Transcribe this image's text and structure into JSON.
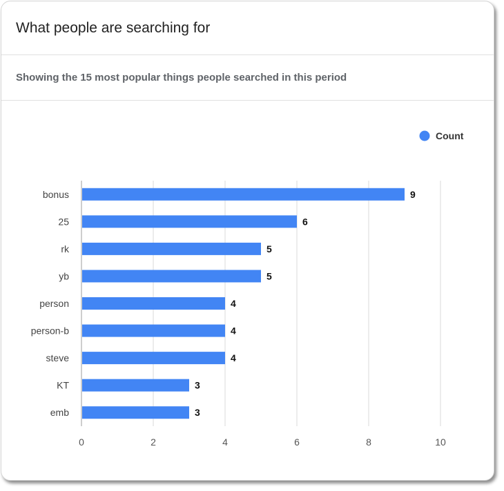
{
  "header": {
    "title": "What people are searching for",
    "subtitle": "Showing the 15 most popular things people searched in this period"
  },
  "colors": {
    "bar": "#4285f4",
    "grid": "#e6e6e6",
    "axis": "#bdbdbd"
  },
  "chart_data": {
    "type": "bar",
    "orientation": "horizontal",
    "categories": [
      "bonus",
      "25",
      "rk",
      "yb",
      "person",
      "person-b",
      "steve",
      "KT",
      "emb"
    ],
    "series": [
      {
        "name": "Count",
        "values": [
          9,
          6,
          5,
          5,
          4,
          4,
          4,
          3,
          3
        ]
      }
    ],
    "xlim": [
      0,
      10
    ],
    "xticks": [
      0,
      2,
      4,
      6,
      8,
      10
    ],
    "grid": true,
    "legend_position": "top-right",
    "data_labels": true
  }
}
